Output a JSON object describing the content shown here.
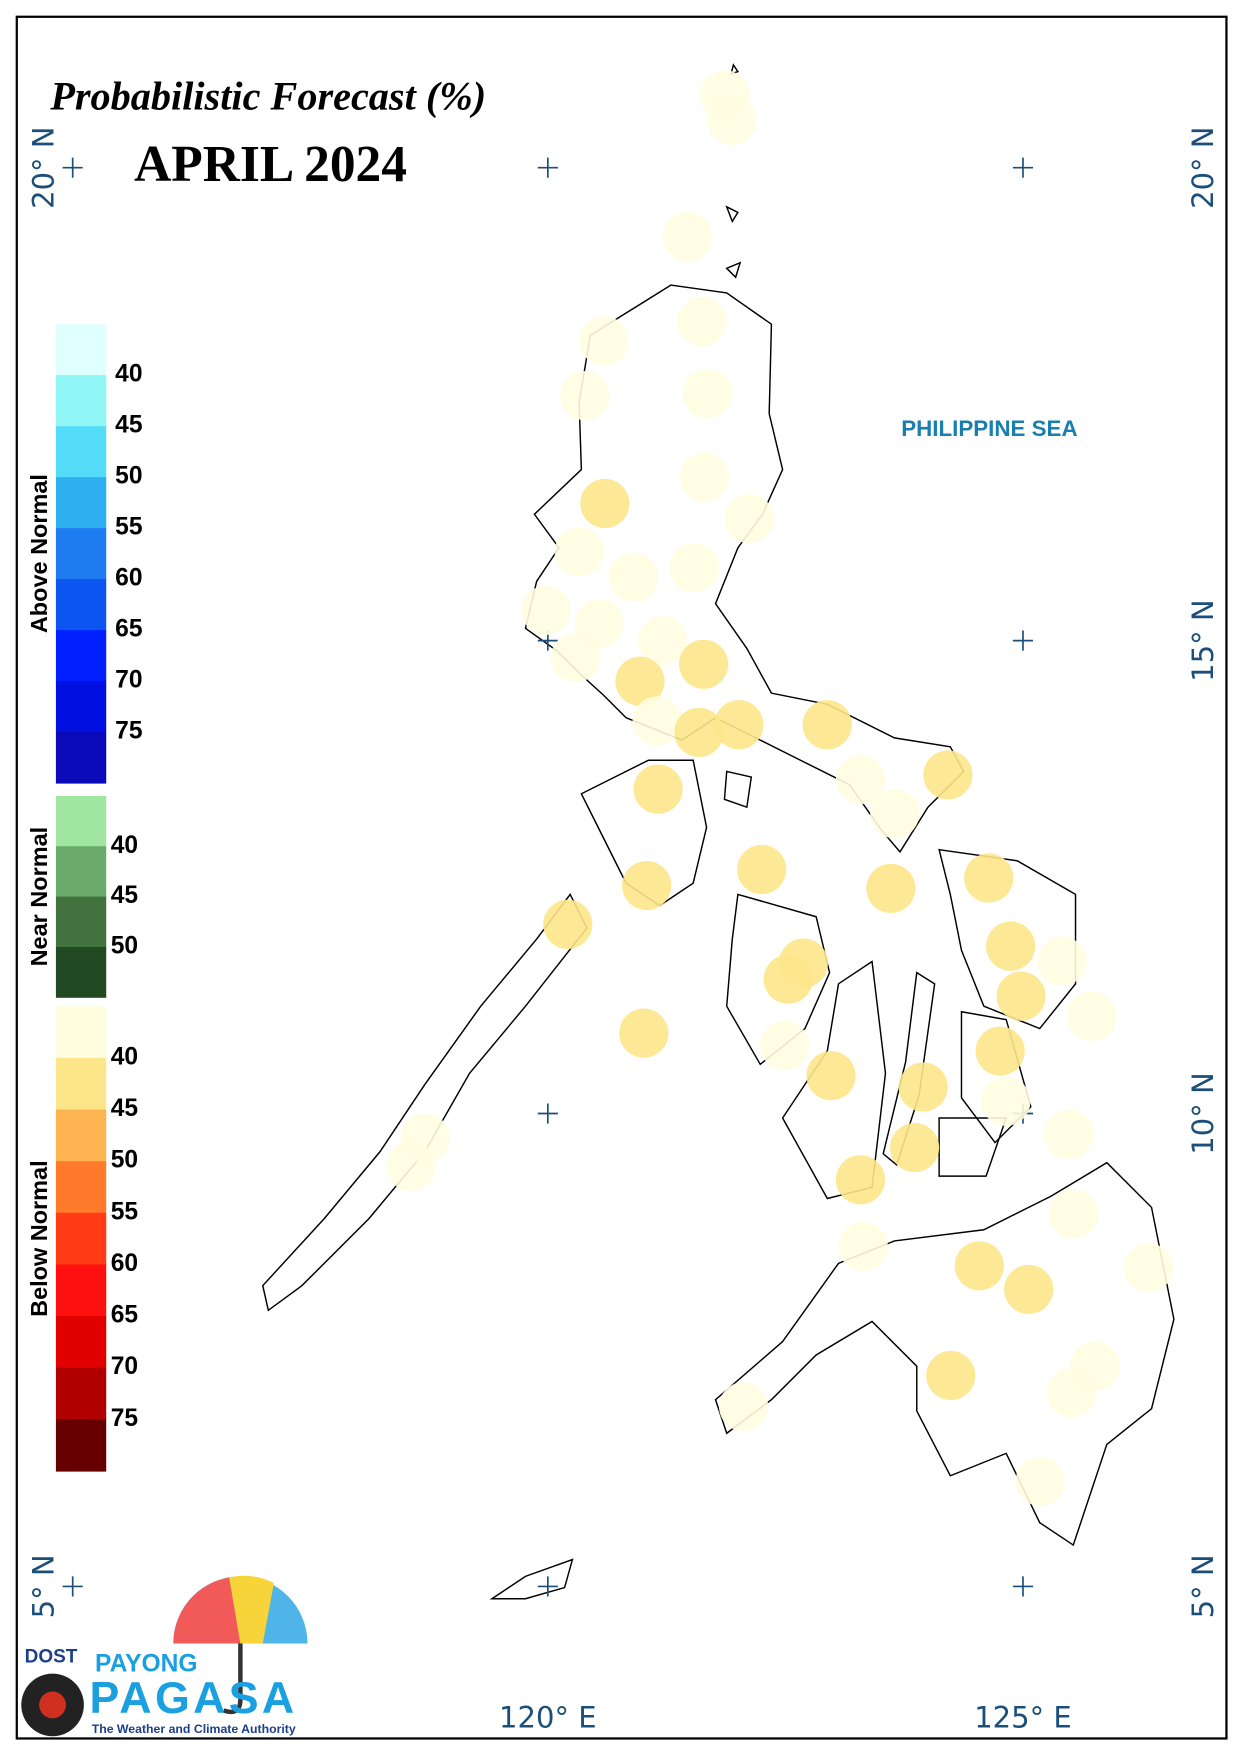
{
  "title": "Probabilistic Forecast (%)",
  "subtitle": "APRIL 2024",
  "sea_label": "PHILIPPINE SEA",
  "graticule": {
    "lons": [
      {
        "value": 120,
        "label": "120° E"
      },
      {
        "value": 125,
        "label": "125° E"
      }
    ],
    "lats": [
      {
        "value": 20,
        "label": "20° N"
      },
      {
        "value": 15,
        "label": "15° N"
      },
      {
        "value": 10,
        "label": "10° N"
      },
      {
        "value": 5,
        "label": "5° N"
      }
    ]
  },
  "legend": {
    "groups": [
      {
        "name": "Above Normal",
        "colors": [
          "#e0ffff",
          "#8ff5f5",
          "#55dcf8",
          "#2fb0f0",
          "#1e7cf0",
          "#0d55f0",
          "#0020ff",
          "#0010e0",
          "#0a0ab8"
        ],
        "labels": [
          40,
          45,
          50,
          55,
          60,
          65,
          70,
          75
        ]
      },
      {
        "name": "Near Normal",
        "colors": [
          "#a0e5a0",
          "#6aaa6a",
          "#42733f",
          "#214a22"
        ],
        "labels": [
          40,
          45,
          50
        ]
      },
      {
        "name": "Below Normal",
        "colors": [
          "#fffde0",
          "#fde68a",
          "#ffb452",
          "#ff7a2a",
          "#ff3c14",
          "#ff1010",
          "#e00000",
          "#b00000",
          "#660000"
        ],
        "labels": [
          40,
          45,
          50,
          55,
          60,
          65,
          70,
          75
        ]
      }
    ]
  },
  "stations": [
    {
      "lon": 121.86,
      "lat": 20.77,
      "level": 0
    },
    {
      "lon": 121.94,
      "lat": 20.5,
      "level": 0
    },
    {
      "lon": 121.47,
      "lat": 19.27,
      "level": 0
    },
    {
      "lon": 121.62,
      "lat": 18.37,
      "level": 0
    },
    {
      "lon": 120.59,
      "lat": 18.17,
      "level": 0
    },
    {
      "lon": 121.68,
      "lat": 17.61,
      "level": 0
    },
    {
      "lon": 120.39,
      "lat": 17.59,
      "level": 0
    },
    {
      "lon": 121.65,
      "lat": 16.73,
      "level": 0
    },
    {
      "lon": 120.6,
      "lat": 16.45,
      "level": 1
    },
    {
      "lon": 122.12,
      "lat": 16.29,
      "level": 0
    },
    {
      "lon": 120.33,
      "lat": 15.94,
      "level": 0
    },
    {
      "lon": 121.54,
      "lat": 15.77,
      "level": 0
    },
    {
      "lon": 120.9,
      "lat": 15.67,
      "level": 0
    },
    {
      "lon": 119.98,
      "lat": 15.32,
      "level": 0
    },
    {
      "lon": 120.54,
      "lat": 15.18,
      "level": 0
    },
    {
      "lon": 121.21,
      "lat": 15.0,
      "level": 0
    },
    {
      "lon": 120.29,
      "lat": 14.82,
      "level": 0
    },
    {
      "lon": 120.97,
      "lat": 14.57,
      "level": 1
    },
    {
      "lon": 121.64,
      "lat": 14.75,
      "level": 1
    },
    {
      "lon": 121.15,
      "lat": 14.15,
      "level": 0
    },
    {
      "lon": 121.59,
      "lat": 14.03,
      "level": 1
    },
    {
      "lon": 122.01,
      "lat": 14.11,
      "level": 1
    },
    {
      "lon": 122.94,
      "lat": 14.11,
      "level": 1
    },
    {
      "lon": 123.29,
      "lat": 13.53,
      "level": 0
    },
    {
      "lon": 124.21,
      "lat": 13.58,
      "level": 1
    },
    {
      "lon": 123.65,
      "lat": 13.17,
      "level": 0
    },
    {
      "lon": 121.16,
      "lat": 13.43,
      "level": 1
    },
    {
      "lon": 122.25,
      "lat": 12.58,
      "level": 1
    },
    {
      "lon": 121.04,
      "lat": 12.41,
      "level": 1
    },
    {
      "lon": 123.61,
      "lat": 12.38,
      "level": 1
    },
    {
      "lon": 124.64,
      "lat": 12.49,
      "level": 1
    },
    {
      "lon": 120.21,
      "lat": 12.0,
      "level": 1
    },
    {
      "lon": 124.87,
      "lat": 11.77,
      "level": 1
    },
    {
      "lon": 125.41,
      "lat": 11.61,
      "level": 0
    },
    {
      "lon": 122.69,
      "lat": 11.59,
      "level": 1
    },
    {
      "lon": 122.53,
      "lat": 11.42,
      "level": 1
    },
    {
      "lon": 124.98,
      "lat": 11.24,
      "level": 1
    },
    {
      "lon": 125.72,
      "lat": 11.03,
      "level": 0
    },
    {
      "lon": 121.01,
      "lat": 10.85,
      "level": 1
    },
    {
      "lon": 122.49,
      "lat": 10.72,
      "level": 0
    },
    {
      "lon": 124.76,
      "lat": 10.66,
      "level": 1
    },
    {
      "lon": 122.98,
      "lat": 10.4,
      "level": 1
    },
    {
      "lon": 123.95,
      "lat": 10.28,
      "level": 1
    },
    {
      "lon": 124.82,
      "lat": 10.13,
      "level": 0
    },
    {
      "lon": 118.71,
      "lat": 9.74,
      "level": 0
    },
    {
      "lon": 118.56,
      "lat": 9.44,
      "level": 0
    },
    {
      "lon": 125.48,
      "lat": 9.78,
      "level": 0
    },
    {
      "lon": 123.86,
      "lat": 9.64,
      "level": 1
    },
    {
      "lon": 123.29,
      "lat": 9.3,
      "level": 1
    },
    {
      "lon": 125.53,
      "lat": 8.94,
      "level": 0
    },
    {
      "lon": 123.32,
      "lat": 8.59,
      "level": 0
    },
    {
      "lon": 124.54,
      "lat": 8.39,
      "level": 1
    },
    {
      "lon": 125.06,
      "lat": 8.14,
      "level": 1
    },
    {
      "lon": 126.32,
      "lat": 8.37,
      "level": 0
    },
    {
      "lon": 124.24,
      "lat": 7.23,
      "level": 1
    },
    {
      "lon": 125.76,
      "lat": 7.33,
      "level": 0
    },
    {
      "lon": 125.51,
      "lat": 7.05,
      "level": 0
    },
    {
      "lon": 122.06,
      "lat": 6.9,
      "level": 0
    },
    {
      "lon": 125.18,
      "lat": 6.11,
      "level": 0
    }
  ],
  "logo": {
    "agency": "DOST",
    "line1": "PAYONG",
    "line2": "PAGASA",
    "tagline": "The Weather and Climate Authority"
  }
}
